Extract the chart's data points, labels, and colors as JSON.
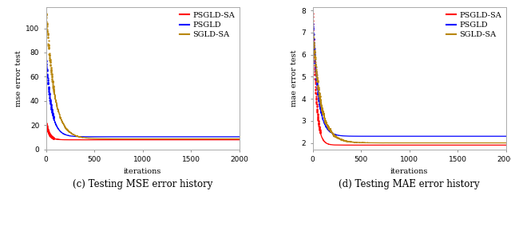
{
  "left_chart": {
    "ylabel": "mse error test",
    "xlabel": "iterations",
    "caption": "(c) Testing MSE error history",
    "xlim": [
      0,
      2000
    ],
    "ylim_bottom": 5,
    "yticks": [
      0,
      20,
      40,
      60,
      80,
      100
    ],
    "xticks": [
      0,
      500,
      1000,
      1500,
      2000
    ],
    "series": {
      "PSGLD-SA": {
        "color": "#FF0000",
        "final": 8.0,
        "decay": 0.03,
        "start": 22,
        "noise_amp": 0.6,
        "noise_decay": 0.02
      },
      "PSGLD": {
        "color": "#0000FF",
        "final": 10.5,
        "decay": 0.018,
        "start": 75,
        "noise_amp": 1.0,
        "noise_decay": 0.015
      },
      "SGLD-SA": {
        "color": "#B8860B",
        "final": 8.8,
        "decay": 0.012,
        "start": 115,
        "noise_amp": 2.5,
        "noise_decay": 0.01
      }
    }
  },
  "right_chart": {
    "ylabel": "mae error test",
    "xlabel": "iterations",
    "caption": "(d) Testing MAE error history",
    "xlim": [
      0,
      2000
    ],
    "ylim_bottom": 1.7,
    "yticks": [
      2,
      3,
      4,
      5,
      6,
      7,
      8
    ],
    "xticks": [
      0,
      500,
      1000,
      1500,
      2000
    ],
    "series": {
      "PSGLD-SA": {
        "color": "#FF0000",
        "final": 1.9,
        "decay": 0.03,
        "start": 8.1,
        "noise_amp": 0.05,
        "noise_decay": 0.02
      },
      "PSGLD": {
        "color": "#0000FF",
        "final": 2.3,
        "decay": 0.018,
        "start": 7.5,
        "noise_amp": 0.08,
        "noise_decay": 0.015
      },
      "SGLD-SA": {
        "color": "#B8860B",
        "final": 2.0,
        "decay": 0.012,
        "start": 7.0,
        "noise_amp": 0.18,
        "noise_decay": 0.008
      }
    }
  },
  "legend_order": [
    "PSGLD-SA",
    "PSGLD",
    "SGLD-SA"
  ],
  "background_color": "#FFFFFF",
  "dot_cutoff": 80,
  "n_points": 2000
}
